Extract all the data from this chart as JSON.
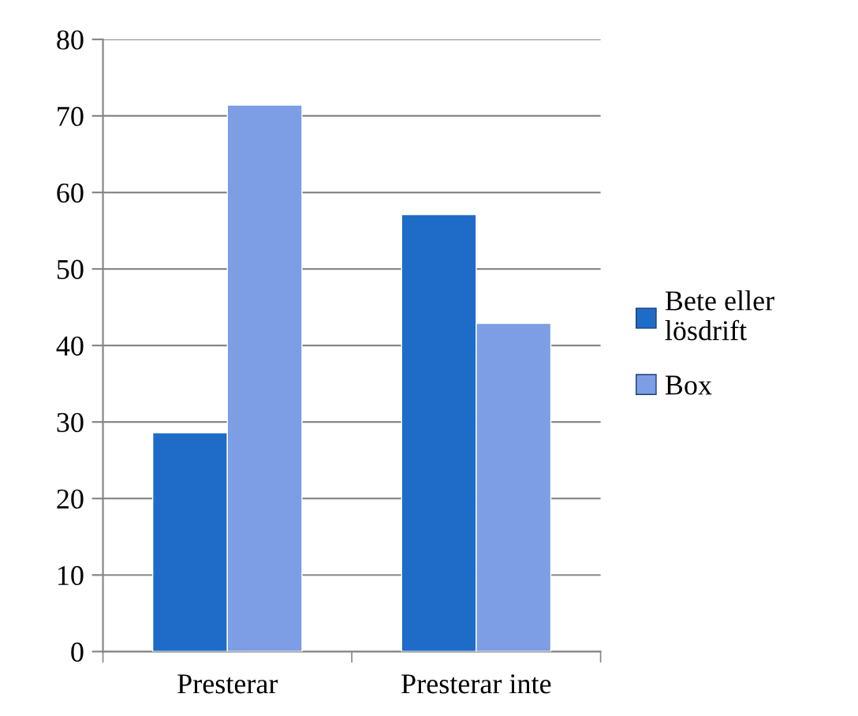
{
  "chart_data": {
    "type": "bar",
    "categories": [
      "Presterar",
      "Presterar inte"
    ],
    "series": [
      {
        "name": "Bete eller\nlösdrift",
        "color": "#1f6cc8",
        "values": [
          28.6,
          57.1
        ]
      },
      {
        "name": "Box",
        "color": "#7d9de4",
        "values": [
          71.4,
          42.9
        ]
      }
    ],
    "ylim": [
      0,
      80
    ],
    "yticks": [
      0,
      10,
      20,
      30,
      40,
      50,
      60,
      70,
      80
    ],
    "grid": "y",
    "legend": "right"
  }
}
